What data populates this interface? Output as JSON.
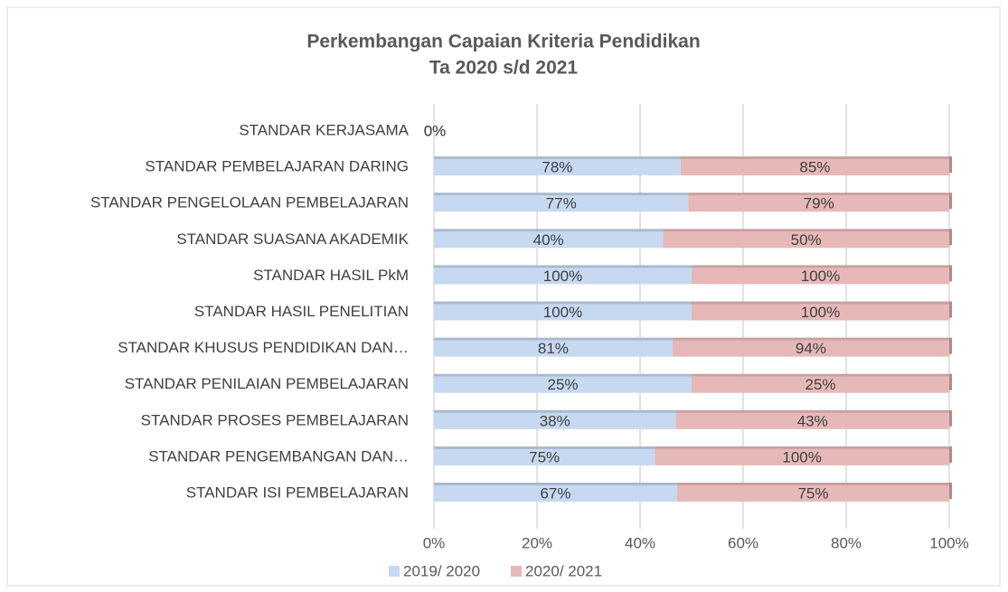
{
  "chart_data": {
    "type": "bar",
    "orientation": "horizontal",
    "stacked": "percent",
    "title": [
      "Perkembangan Capaian Kriteria Pendidikan",
      "Ta 2020 s/d 2021"
    ],
    "categories": [
      "STANDAR KERJASAMA",
      "STANDAR PEMBELAJARAN DARING",
      "STANDAR PENGELOLAAN PEMBELAJARAN",
      "STANDAR SUASANA AKADEMIK",
      "STANDAR HASIL PkM",
      "STANDAR HASIL PENELITIAN",
      "STANDAR KHUSUS PENDIDIKAN DAN…",
      "STANDAR PENILAIAN PEMBELAJARAN",
      "STANDAR PROSES PEMBELAJARAN",
      "STANDAR PENGEMBANGAN DAN…",
      "STANDAR ISI PEMBELAJARAN"
    ],
    "series": [
      {
        "name": "2019/ 2020",
        "color": "#c6d9f1",
        "values": [
          0,
          78,
          77,
          40,
          100,
          100,
          81,
          25,
          38,
          75,
          67
        ],
        "value_labels": [
          "0%",
          "78%",
          "77%",
          "40%",
          "100%",
          "100%",
          "81%",
          "25%",
          "38%",
          "75%",
          "67%"
        ]
      },
      {
        "name": "2020/ 2021",
        "color": "#e6b9b8",
        "values": [
          0,
          85,
          79,
          50,
          100,
          100,
          94,
          25,
          43,
          100,
          75
        ],
        "value_labels": [
          "0%",
          "85%",
          "79%",
          "50%",
          "100%",
          "100%",
          "94%",
          "25%",
          "43%",
          "100%",
          "75%"
        ]
      }
    ],
    "xlim": [
      0,
      100
    ],
    "xticks": [
      {
        "value": 0,
        "label": "0%"
      },
      {
        "value": 20,
        "label": "20%"
      },
      {
        "value": 40,
        "label": "40%"
      },
      {
        "value": 60,
        "label": "60%"
      },
      {
        "value": 80,
        "label": "80%"
      },
      {
        "value": 100,
        "label": "100%"
      }
    ],
    "grid": true,
    "legend": "bottom"
  }
}
